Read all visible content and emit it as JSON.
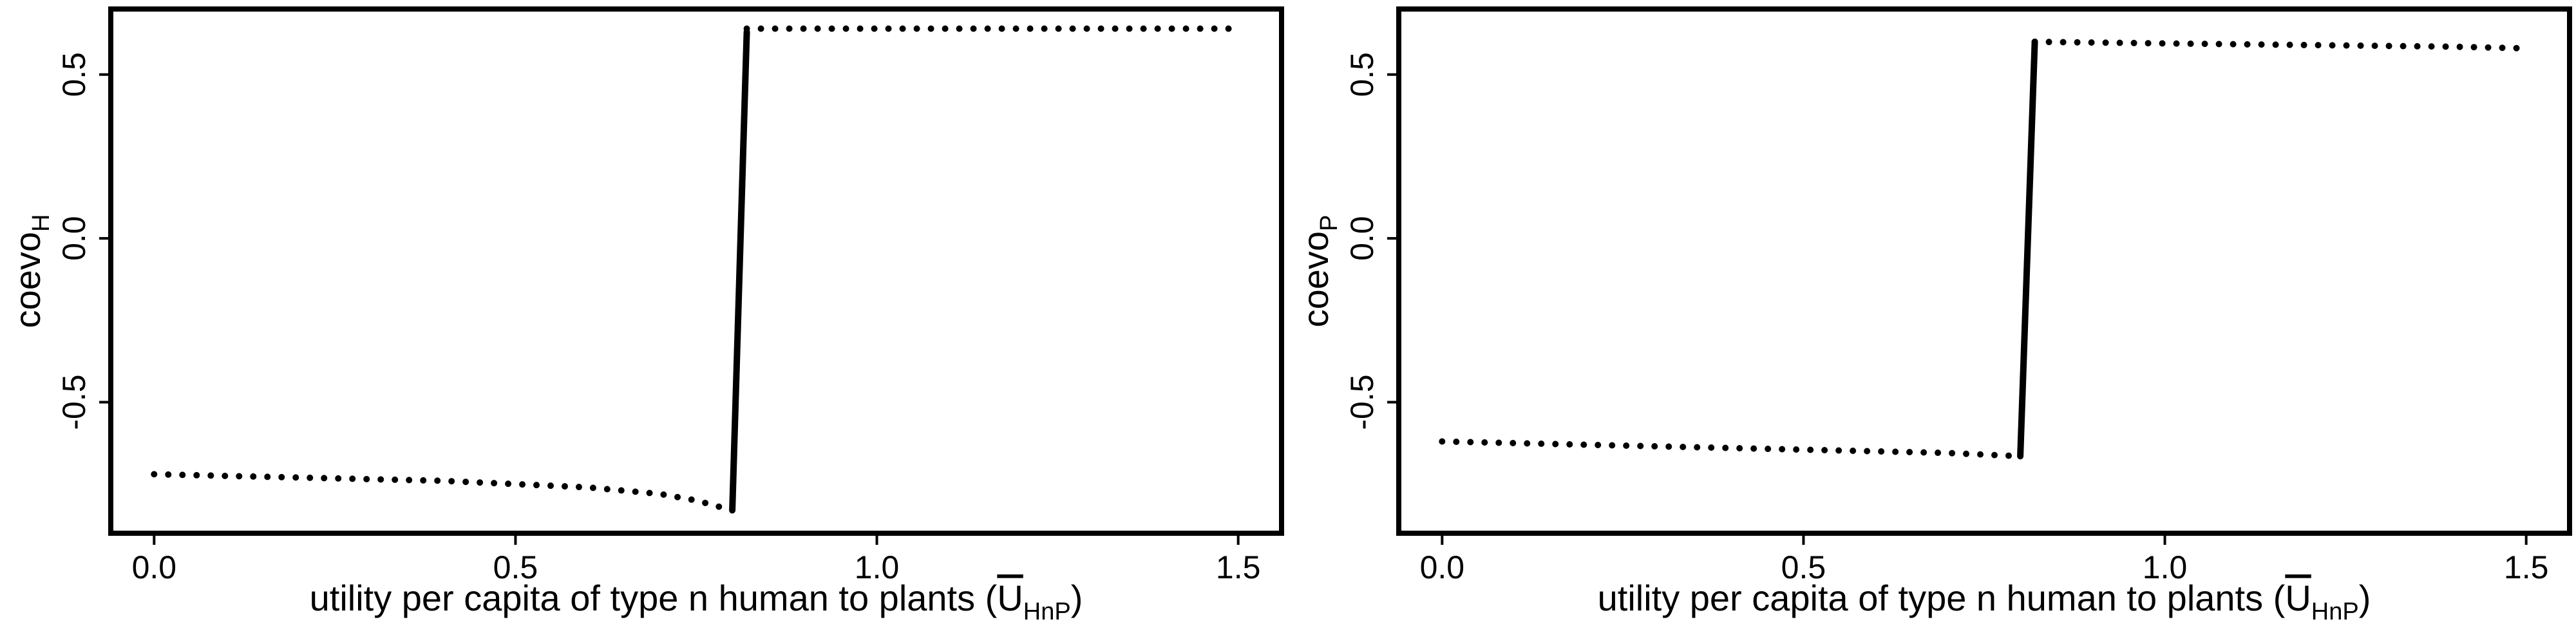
{
  "chart_data": [
    {
      "type": "line",
      "xlabel": "utility per capita of type n human to plants (",
      "xlabel_symbol": "U",
      "xlabel_subscript": "HnP",
      "xlabel_close": ")",
      "ylabel_main": "coevo",
      "ylabel_sub": "H",
      "xlim": [
        -0.06,
        1.56
      ],
      "ylim": [
        -0.9,
        0.7
      ],
      "x_ticks": [
        0.0,
        0.5,
        1.0,
        1.5
      ],
      "x_tick_labels": [
        "0.0",
        "0.5",
        "1.0",
        "1.5"
      ],
      "y_ticks": [
        -0.5,
        0.0,
        0.5
      ],
      "y_tick_labels": [
        "-0.5",
        "0.0",
        "0.5"
      ],
      "grid": false,
      "series": [
        {
          "style": "dotted",
          "x": [
            0.0,
            0.1,
            0.2,
            0.3,
            0.4,
            0.5,
            0.6,
            0.7,
            0.75,
            0.8
          ],
          "y": [
            -0.72,
            -0.725,
            -0.73,
            -0.735,
            -0.74,
            -0.75,
            -0.76,
            -0.78,
            -0.8,
            -0.83
          ]
        },
        {
          "style": "solid",
          "x": [
            0.8,
            0.82
          ],
          "y": [
            -0.83,
            0.63
          ]
        },
        {
          "style": "dotted",
          "x": [
            0.82,
            1.0,
            1.2,
            1.4,
            1.5
          ],
          "y": [
            0.64,
            0.64,
            0.64,
            0.64,
            0.64
          ]
        }
      ]
    },
    {
      "type": "line",
      "xlabel": "utility per capita of type n human to plants (",
      "xlabel_symbol": "U",
      "xlabel_subscript": "HnP",
      "xlabel_close": ")",
      "ylabel_main": "coevo",
      "ylabel_sub": "P",
      "xlim": [
        -0.06,
        1.56
      ],
      "ylim": [
        -0.9,
        0.7
      ],
      "x_ticks": [
        0.0,
        0.5,
        1.0,
        1.5
      ],
      "x_tick_labels": [
        "0.0",
        "0.5",
        "1.0",
        "1.5"
      ],
      "y_ticks": [
        -0.5,
        0.0,
        0.5
      ],
      "y_tick_labels": [
        "-0.5",
        "0.0",
        "0.5"
      ],
      "grid": false,
      "series": [
        {
          "style": "dotted",
          "x": [
            0.0,
            0.2,
            0.4,
            0.6,
            0.7,
            0.8
          ],
          "y": [
            -0.62,
            -0.63,
            -0.64,
            -0.65,
            -0.655,
            -0.665
          ]
        },
        {
          "style": "solid",
          "x": [
            0.8,
            0.82
          ],
          "y": [
            -0.665,
            0.6
          ]
        },
        {
          "style": "dotted",
          "x": [
            0.82,
            1.0,
            1.2,
            1.4,
            1.5
          ],
          "y": [
            0.6,
            0.595,
            0.59,
            0.585,
            0.58
          ]
        }
      ]
    }
  ]
}
